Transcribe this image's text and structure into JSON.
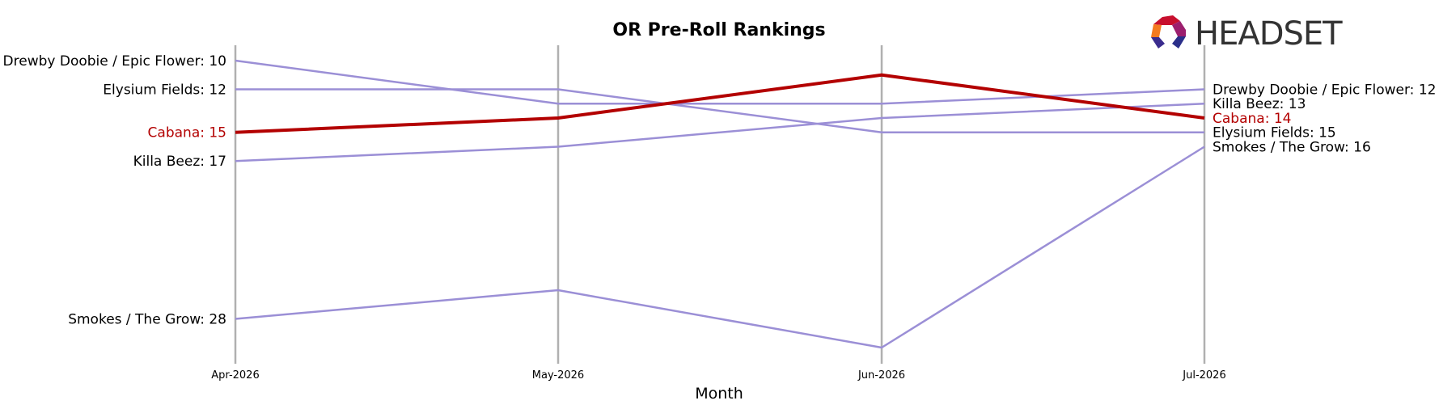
{
  "chart_data": {
    "type": "line",
    "title": "OR Pre-Roll Rankings",
    "xlabel": "Month",
    "ylabel": "",
    "x": [
      "Apr-2026",
      "May-2026",
      "Jun-2026",
      "Jul-2026"
    ],
    "y_inverted": true,
    "ylim": [
      8.8,
      30.2
    ],
    "grid": false,
    "series": [
      {
        "name": "Drewby Doobie / Epic Flower",
        "values": [
          10,
          13,
          13,
          12
        ],
        "color": "#9b8fd6",
        "highlight": false
      },
      {
        "name": "Elysium Fields",
        "values": [
          12,
          12,
          15,
          15
        ],
        "color": "#9b8fd6",
        "highlight": false
      },
      {
        "name": "Killa Beez",
        "values": [
          17,
          16,
          14,
          13
        ],
        "color": "#9b8fd6",
        "highlight": false
      },
      {
        "name": "Smokes / The Grow",
        "values": [
          28,
          26,
          30,
          16
        ],
        "color": "#9b8fd6",
        "highlight": false
      },
      {
        "name": "Cabana",
        "values": [
          15,
          14,
          11,
          14
        ],
        "color": "#b30000",
        "highlight": true
      }
    ]
  },
  "colors": {
    "highlight": "#b30000",
    "series": "#9b8fd6",
    "month_line": "#b0b0b0",
    "logo_text": "#333333"
  },
  "logo": {
    "text": "HEADSET",
    "icon": "headset-logo-icon"
  }
}
